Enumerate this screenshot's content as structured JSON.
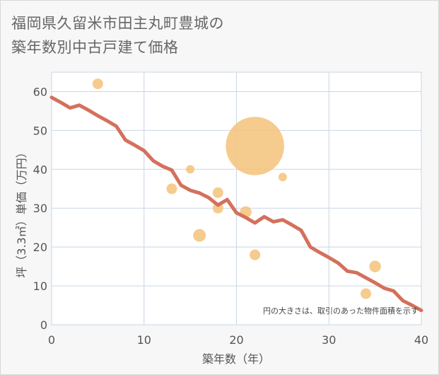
{
  "title_line1": "福岡県久留米市田主丸町豊城の",
  "title_line2": "築年数別中古戸建て価格",
  "chart_data": {
    "type": "scatter",
    "title": "福岡県久留米市田主丸町豊城の築年数別中古戸建て価格",
    "xlabel": "築年数（年）",
    "ylabel": "坪（3.3㎡）単価（万円）",
    "xlim": [
      0,
      40
    ],
    "ylim": [
      0,
      65
    ],
    "xticks": [
      0,
      10,
      20,
      30,
      40
    ],
    "yticks": [
      0,
      10,
      20,
      30,
      40,
      50,
      60
    ],
    "grid": true,
    "note": "円の大きさは、取引のあった物件面積を示す",
    "colors": {
      "scatter": "#f5c27a",
      "line": "#d4705c",
      "grid": "#c9d6e6",
      "background": "#ffffff"
    },
    "scatter": [
      {
        "x": 5,
        "y": 62,
        "size": 1
      },
      {
        "x": 13,
        "y": 35,
        "size": 1
      },
      {
        "x": 15,
        "y": 40,
        "size": 0.8
      },
      {
        "x": 16,
        "y": 23,
        "size": 1.2
      },
      {
        "x": 18,
        "y": 34,
        "size": 1
      },
      {
        "x": 18,
        "y": 30,
        "size": 1
      },
      {
        "x": 21,
        "y": 29,
        "size": 1.1
      },
      {
        "x": 22,
        "y": 46,
        "size": 5.5
      },
      {
        "x": 22,
        "y": 18,
        "size": 1
      },
      {
        "x": 25,
        "y": 38,
        "size": 0.8
      },
      {
        "x": 34,
        "y": 8,
        "size": 1
      },
      {
        "x": 35,
        "y": 15,
        "size": 1.1
      }
    ],
    "trend_line": {
      "x": [
        0,
        1,
        2,
        3,
        4,
        5,
        6,
        7,
        8,
        9,
        10,
        11,
        12,
        13,
        14,
        15,
        16,
        17,
        18,
        19,
        20,
        21,
        22,
        23,
        24,
        25,
        26,
        27,
        28,
        29,
        30,
        31,
        32,
        33,
        34,
        35,
        36,
        37,
        38,
        39,
        40
      ],
      "y": [
        58.5,
        57.2,
        55.8,
        56.5,
        55.2,
        53.8,
        52.5,
        51.1,
        47.5,
        46.2,
        44.8,
        42.2,
        40.8,
        39.8,
        35.9,
        34.6,
        33.9,
        32.7,
        30.8,
        32.2,
        28.8,
        27.6,
        26.2,
        27.8,
        26.5,
        27.0,
        25.7,
        24.3,
        20.0,
        18.6,
        17.3,
        15.9,
        13.8,
        13.4,
        12.1,
        10.8,
        9.4,
        8.7,
        6.2,
        5.0,
        3.7
      ]
    }
  }
}
